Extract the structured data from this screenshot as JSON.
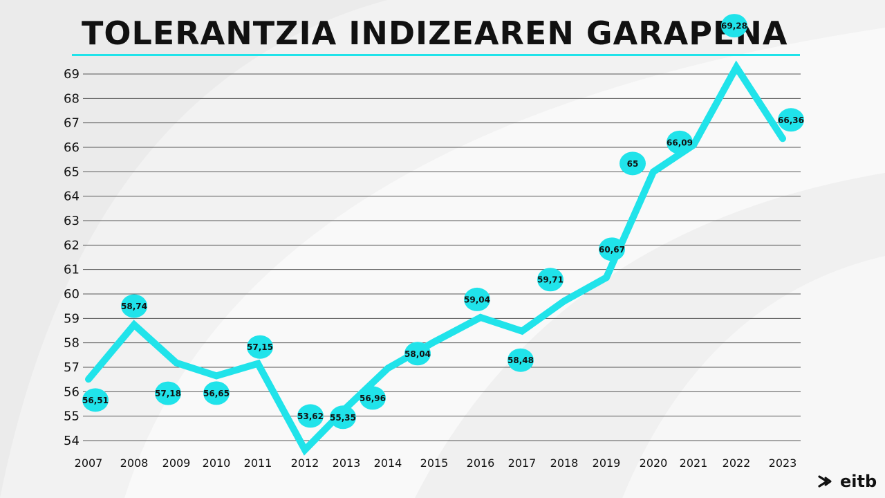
{
  "title": "TOLERANTZIA INDIZEAREN GARAPENA",
  "brand": {
    "logo_text": "eitb",
    "logo_icon": "eitb-arrows-icon"
  },
  "colors": {
    "accent": "#20e3ea",
    "text": "#111111",
    "grid": "#555555"
  },
  "chart_data": {
    "type": "line",
    "title": "TOLERANTZIA INDIZEAREN GARAPENA",
    "xlabel": "",
    "ylabel": "",
    "grid": true,
    "ylim": [
      54,
      69
    ],
    "yticks": [
      "54",
      "55",
      "56",
      "57",
      "58",
      "59",
      "60",
      "61",
      "62",
      "63",
      "64",
      "65",
      "66",
      "67",
      "68",
      "69"
    ],
    "categories": [
      "2007",
      "2008",
      "2009",
      "2010",
      "2011",
      "2012",
      "2013",
      "2014",
      "2015",
      "2016",
      "2017",
      "2018",
      "2019",
      "2020",
      "2021",
      "2022",
      "2023"
    ],
    "values": [
      56.51,
      58.74,
      57.18,
      56.65,
      57.15,
      53.62,
      55.35,
      56.96,
      58.04,
      59.04,
      58.48,
      59.71,
      60.67,
      65,
      66.09,
      69.28,
      66.36
    ],
    "labels": [
      "56,51",
      "58,74",
      "57,18",
      "56,65",
      "57,15",
      "53,62",
      "55,35",
      "56,96",
      "58,04",
      "59,04",
      "58,48",
      "59,71",
      "60,67",
      "65",
      "66,09",
      "69,28",
      "66,36"
    ]
  }
}
